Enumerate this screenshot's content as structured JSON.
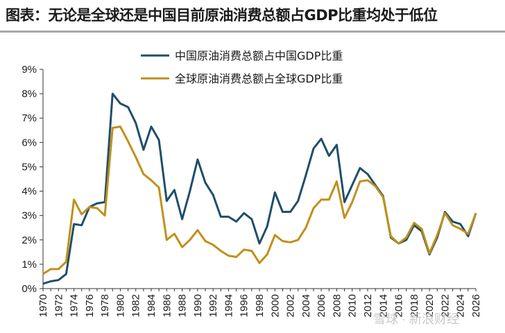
{
  "title": "图表：无论是全球还是中国目前原油消费总额占GDP比重均处于低位",
  "watermark": "雪球 · 新浪财经",
  "chart_data": {
    "type": "line",
    "x": [
      1970,
      1971,
      1972,
      1973,
      1974,
      1975,
      1976,
      1977,
      1978,
      1979,
      1980,
      1981,
      1982,
      1983,
      1984,
      1985,
      1986,
      1987,
      1988,
      1989,
      1990,
      1991,
      1992,
      1993,
      1994,
      1995,
      1996,
      1997,
      1998,
      1999,
      2000,
      2001,
      2002,
      2003,
      2004,
      2005,
      2006,
      2007,
      2008,
      2009,
      2010,
      2011,
      2012,
      2013,
      2014,
      2015,
      2016,
      2017,
      2018,
      2019,
      2020,
      2021,
      2022,
      2023,
      2024,
      2025,
      2026
    ],
    "x_ticks": [
      "1970",
      "1972",
      "1974",
      "1976",
      "1978",
      "1980",
      "1982",
      "1984",
      "1986",
      "1988",
      "1990",
      "1992",
      "1994",
      "1996",
      "1998",
      "2000",
      "2002",
      "2004",
      "2006",
      "2008",
      "2010",
      "2012",
      "2014",
      "2016",
      "2018",
      "2020",
      "2022",
      "2024",
      "2026"
    ],
    "y_ticks": [
      "0%",
      "1%",
      "2%",
      "3%",
      "4%",
      "5%",
      "6%",
      "7%",
      "8%",
      "9%"
    ],
    "ylim": [
      0,
      9
    ],
    "series": [
      {
        "name": "中国原油消费总额占中国GDP比重",
        "color": "#1f4e6a",
        "values": [
          0.2,
          0.3,
          0.35,
          0.6,
          2.65,
          2.6,
          3.35,
          3.5,
          3.55,
          8.0,
          7.6,
          7.45,
          6.8,
          5.7,
          6.65,
          6.1,
          3.6,
          4.05,
          2.85,
          4.0,
          5.3,
          4.35,
          3.85,
          2.95,
          2.95,
          2.75,
          3.1,
          2.85,
          1.85,
          2.55,
          3.95,
          3.15,
          3.15,
          3.6,
          4.65,
          5.75,
          6.15,
          5.45,
          5.9,
          3.55,
          4.25,
          4.95,
          4.7,
          4.25,
          3.8,
          2.1,
          1.85,
          2.0,
          2.6,
          2.35,
          1.4,
          2.1,
          3.15,
          2.75,
          2.65,
          2.15,
          3.1
        ]
      },
      {
        "name": "全球原油消费总额占全球GDP比重",
        "color": "#c09018",
        "values": [
          0.6,
          0.8,
          0.8,
          1.1,
          3.65,
          3.05,
          3.35,
          3.3,
          3.0,
          6.6,
          6.65,
          6.05,
          5.4,
          4.7,
          4.45,
          4.15,
          2.0,
          2.25,
          1.7,
          2.0,
          2.4,
          1.95,
          1.8,
          1.55,
          1.35,
          1.3,
          1.6,
          1.55,
          1.05,
          1.4,
          2.2,
          1.95,
          1.9,
          2.0,
          2.5,
          3.3,
          3.65,
          3.65,
          4.4,
          2.9,
          3.55,
          4.4,
          4.45,
          4.2,
          3.75,
          2.15,
          1.85,
          2.1,
          2.7,
          2.45,
          1.45,
          2.2,
          3.1,
          2.6,
          2.45,
          2.25,
          3.1
        ]
      }
    ],
    "legend_position": "top-left",
    "grid": false
  }
}
